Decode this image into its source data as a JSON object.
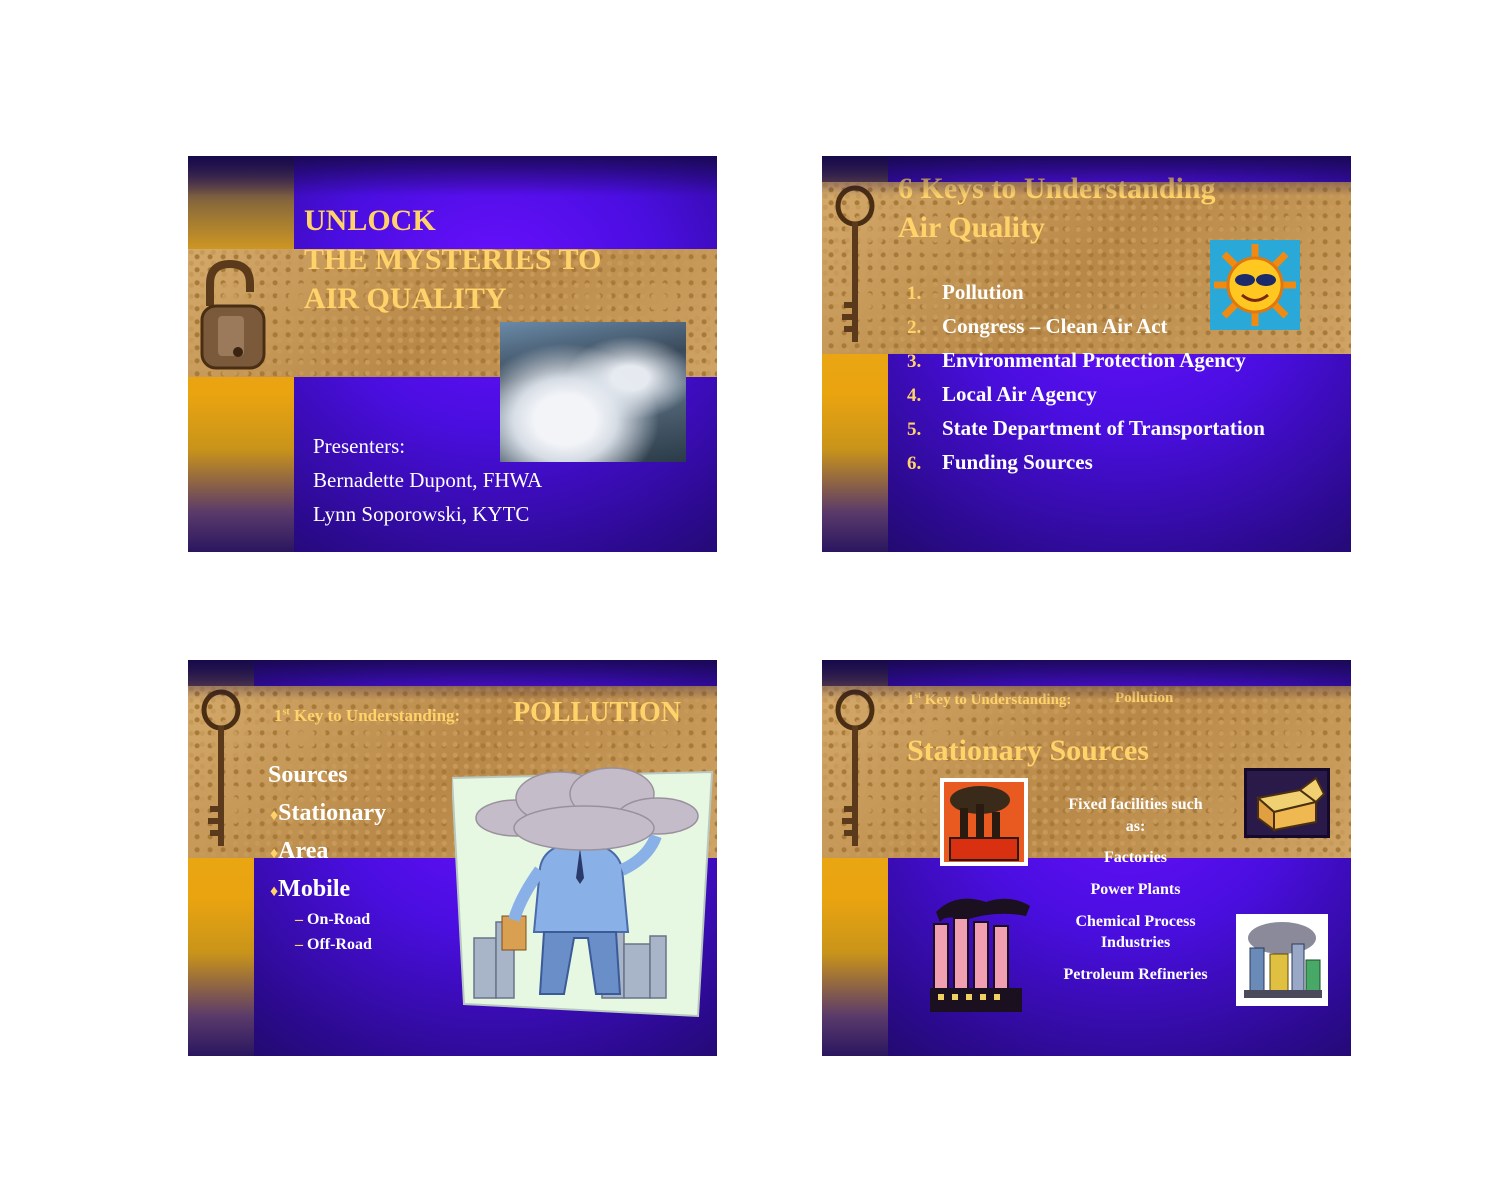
{
  "slide1": {
    "title_lines": [
      "UNLOCK",
      "THE MYSTERIES TO",
      "AIR QUALITY"
    ],
    "presenters_label": "Presenters:",
    "presenters": [
      "Bernadette Dupont, FHWA",
      "Lynn Soporowski, KYTC"
    ]
  },
  "slide2": {
    "title_lines": [
      "6 Keys to Understanding",
      "Air Quality"
    ],
    "items": [
      {
        "num": "1.",
        "text": "Pollution"
      },
      {
        "num": "2.",
        "text": "Congress – Clean Air Act"
      },
      {
        "num": "3.",
        "text": "Environmental Protection Agency"
      },
      {
        "num": "4.",
        "text": "Local Air Agency"
      },
      {
        "num": "5.",
        "text": "State Department of Transportation"
      },
      {
        "num": "6.",
        "text": "Funding Sources"
      }
    ]
  },
  "slide3": {
    "header_ordinal": "1",
    "header_suffix": "st",
    "header_text": " Key to Understanding:",
    "header_topic": "POLLUTION",
    "sources_label": "Sources",
    "bullets": [
      "Stationary",
      "Area",
      "Mobile"
    ],
    "sub_bullets": [
      "On-Road",
      "Off-Road"
    ]
  },
  "slide4": {
    "header_ordinal": "1",
    "header_suffix": "st",
    "header_text": " Key to Understanding:",
    "header_topic": "Pollution",
    "title": "Stationary Sources",
    "lines": [
      "Fixed facilities such",
      "as:",
      "Factories",
      "Power Plants",
      "Chemical Process",
      "Industries",
      "Petroleum Refineries"
    ]
  },
  "colors": {
    "title_gold": "#ffd36a",
    "text_white": "#ffffff",
    "slide_purple": "#4a0ee0",
    "strip_gold": "#eaa410"
  }
}
